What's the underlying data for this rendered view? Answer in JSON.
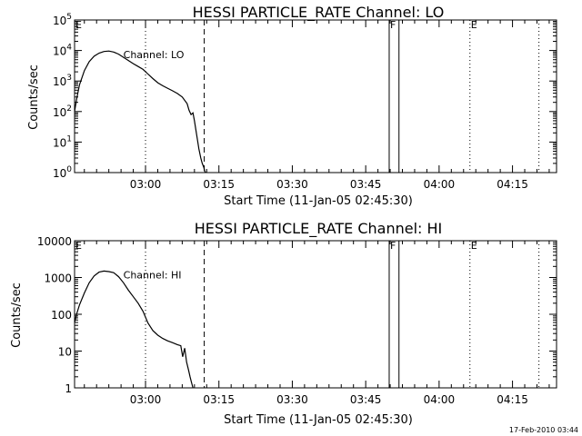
{
  "footer": {
    "timestamp": "17-Feb-2010 03:44"
  },
  "chart_data": [
    {
      "type": "line",
      "title": "HESSI PARTICLE_RATE Channel: LO",
      "xlabel": "Start Time (11-Jan-05 02:45:30)",
      "ylabel": "Counts/sec",
      "yscale": "log",
      "ylim": [
        1,
        100000
      ],
      "xlim_minutes": [
        0,
        98.5
      ],
      "x_ticks": [
        {
          "label": "03:00",
          "t": 14.5
        },
        {
          "label": "03:15",
          "t": 29.5
        },
        {
          "label": "03:30",
          "t": 44.5
        },
        {
          "label": "03:45",
          "t": 59.5
        },
        {
          "label": "04:00",
          "t": 74.5
        },
        {
          "label": "04:15",
          "t": 89.5
        }
      ],
      "y_ticks": [
        {
          "value": 1,
          "label": "10",
          "exp": "0"
        },
        {
          "value": 10,
          "label": "10",
          "exp": "1"
        },
        {
          "value": 100,
          "label": "10",
          "exp": "2"
        },
        {
          "value": 1000,
          "label": "10",
          "exp": "3"
        },
        {
          "value": 10000,
          "label": "10",
          "exp": "4"
        },
        {
          "value": 100000,
          "label": "10",
          "exp": "5"
        }
      ],
      "legend": "Channel: LO",
      "markers": [
        {
          "t": 0,
          "style": "dotted",
          "label": "E"
        },
        {
          "t": 14.5,
          "style": "dotted",
          "label": ""
        },
        {
          "t": 26.5,
          "style": "dashed",
          "label": ""
        },
        {
          "t": 64.3,
          "style": "solid",
          "label": "F"
        },
        {
          "t": 66.3,
          "style": "solid",
          "label": ""
        },
        {
          "t": 80.8,
          "style": "dotted",
          "label": "E"
        },
        {
          "t": 94.9,
          "style": "dotted",
          "label": ""
        }
      ],
      "series": [
        {
          "x": [
            0,
            0.4,
            1,
            2,
            3,
            4,
            5,
            6,
            7,
            8,
            9,
            10,
            11,
            12,
            13,
            14,
            15,
            16,
            17,
            18,
            19,
            20,
            21,
            22,
            23,
            23.4,
            23.8,
            24.2,
            24.5,
            24.8,
            25.1,
            25.4,
            25.8,
            26.1,
            26.4,
            26.6,
            26.8
          ],
          "y": [
            100,
            250,
            750,
            2200,
            4300,
            6500,
            8200,
            9300,
            9600,
            8900,
            7600,
            6000,
            4700,
            3700,
            3000,
            2400,
            1700,
            1200,
            880,
            700,
            580,
            480,
            390,
            300,
            180,
            110,
            80,
            90,
            50,
            25,
            12,
            6,
            3,
            2,
            1.5,
            1.1,
            1
          ]
        }
      ]
    },
    {
      "type": "line",
      "title": "HESSI PARTICLE_RATE Channel: HI",
      "xlabel": "Start Time (11-Jan-05 02:45:30)",
      "ylabel": "Counts/sec",
      "yscale": "log",
      "ylim": [
        1,
        10000
      ],
      "xlim_minutes": [
        0,
        98.5
      ],
      "x_ticks": [
        {
          "label": "03:00",
          "t": 14.5
        },
        {
          "label": "03:15",
          "t": 29.5
        },
        {
          "label": "03:30",
          "t": 44.5
        },
        {
          "label": "03:45",
          "t": 59.5
        },
        {
          "label": "04:00",
          "t": 74.5
        },
        {
          "label": "04:15",
          "t": 89.5
        }
      ],
      "y_ticks": [
        {
          "value": 1,
          "label": "1"
        },
        {
          "value": 10,
          "label": "10"
        },
        {
          "value": 100,
          "label": "100"
        },
        {
          "value": 1000,
          "label": "1000"
        },
        {
          "value": 10000,
          "label": "10000"
        }
      ],
      "legend": "Channel: HI",
      "markers": [
        {
          "t": 0,
          "style": "dotted",
          "label": "E"
        },
        {
          "t": 14.5,
          "style": "dotted",
          "label": ""
        },
        {
          "t": 26.5,
          "style": "dashed",
          "label": ""
        },
        {
          "t": 64.3,
          "style": "solid",
          "label": "F"
        },
        {
          "t": 66.3,
          "style": "solid",
          "label": ""
        },
        {
          "t": 80.8,
          "style": "dotted",
          "label": "E"
        },
        {
          "t": 94.9,
          "style": "dotted",
          "label": ""
        }
      ],
      "series": [
        {
          "x": [
            0,
            0.5,
            1,
            2,
            3,
            4,
            5,
            6,
            7,
            8,
            9,
            10,
            11,
            12,
            13,
            14,
            15,
            16,
            17,
            18,
            19,
            20,
            21,
            21.7,
            22.1,
            22.5,
            22.9,
            23.3,
            23.6,
            23.9,
            24.2
          ],
          "y": [
            60,
            110,
            180,
            380,
            720,
            1100,
            1400,
            1500,
            1450,
            1350,
            1050,
            720,
            450,
            300,
            200,
            120,
            58,
            36,
            27,
            22,
            19,
            17,
            15,
            14,
            7,
            12,
            5,
            3,
            2,
            1.4,
            1
          ]
        }
      ]
    }
  ]
}
